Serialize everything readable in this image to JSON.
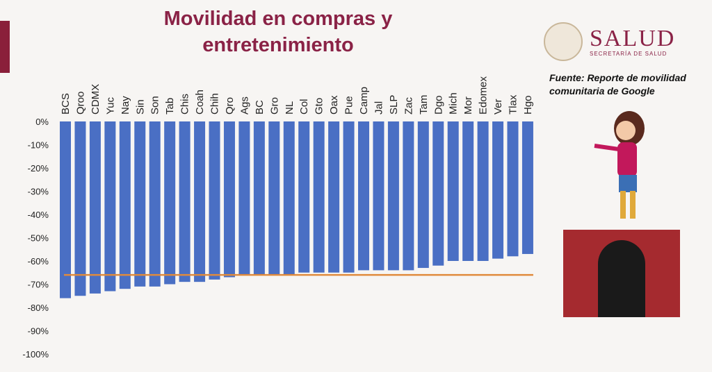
{
  "header": {
    "title": "Movilidad en compras y entretenimiento",
    "brand": "SALUD",
    "brand_sub": "SECRETARÍA DE SALUD",
    "source": "Fuente: Reporte de movilidad comunitaria de Google"
  },
  "chart_data": {
    "type": "bar",
    "title": "Movilidad en compras y entretenimiento",
    "categories": [
      "BCS",
      "Qroo",
      "CDMX",
      "Yuc",
      "Nay",
      "Sin",
      "Son",
      "Tab",
      "Chis",
      "Coah",
      "Chih",
      "Qro",
      "Ags",
      "BC",
      "Gro",
      "NL",
      "Col",
      "Gto",
      "Oax",
      "Pue",
      "Camp",
      "Jal",
      "SLP",
      "Zac",
      "Tam",
      "Dgo",
      "Mich",
      "Mor",
      "Edomex",
      "Ver",
      "Tlax",
      "Hgo"
    ],
    "values": [
      -76,
      -75,
      -74,
      -73,
      -72,
      -71,
      -71,
      -70,
      -69,
      -69,
      -68,
      -67,
      -66,
      -66,
      -66,
      -66,
      -65,
      -65,
      -65,
      -65,
      -64,
      -64,
      -64,
      -64,
      -63,
      -62,
      -60,
      -60,
      -60,
      -59,
      -58,
      -57
    ],
    "reference_line": -66,
    "ylim": [
      -100,
      0
    ],
    "yticks": [
      "0%",
      "-10%",
      "-20%",
      "-30%",
      "-40%",
      "-50%",
      "-60%",
      "-70%",
      "-80%",
      "-90%",
      "-100%"
    ],
    "colors": {
      "bar": "#4a6fc4",
      "reference": "#e08a3c"
    },
    "grid": false,
    "category_axis": "top"
  }
}
